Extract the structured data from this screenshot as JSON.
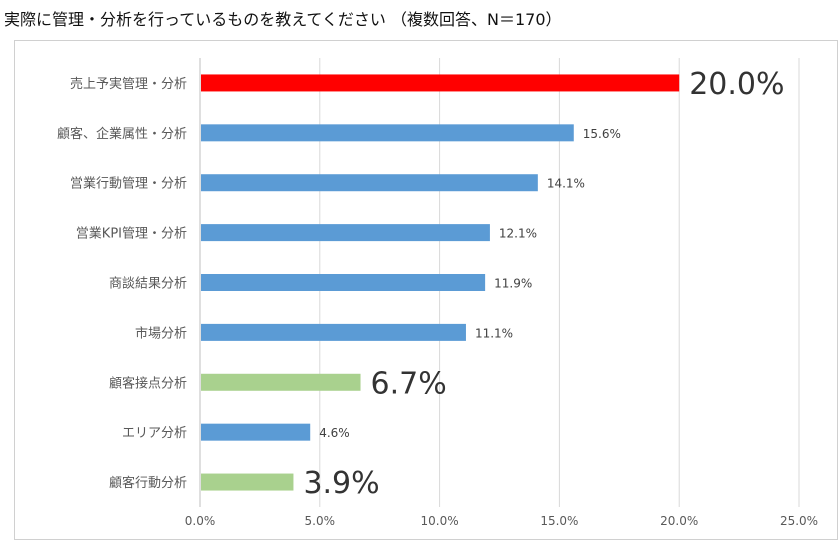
{
  "title": "実際に管理・分析を行っているものを教えてください （複数回答、N＝170）",
  "chart_data": {
    "type": "bar",
    "orientation": "horizontal",
    "categories": [
      "売上予実管理・分析",
      "顧客、企業属性・分析",
      "営業行動管理・分析",
      "営業KPI管理・分析",
      "商談結果分析",
      "市場分析",
      "顧客接点分析",
      "エリア分析",
      "顧客行動分析"
    ],
    "values": [
      20.0,
      15.6,
      14.1,
      12.1,
      11.9,
      11.1,
      6.7,
      4.6,
      3.9
    ],
    "value_labels": [
      "20.0%",
      "15.6%",
      "14.1%",
      "12.1%",
      "11.9%",
      "11.1%",
      "6.7%",
      "4.6%",
      "3.9%"
    ],
    "bar_colors": [
      "#ff0000",
      "#5b9bd5",
      "#5b9bd5",
      "#5b9bd5",
      "#5b9bd5",
      "#5b9bd5",
      "#a9d18e",
      "#5b9bd5",
      "#a9d18e"
    ],
    "emphasized": [
      true,
      false,
      false,
      false,
      false,
      false,
      true,
      false,
      true
    ],
    "xlim": [
      0,
      25
    ],
    "xticks": [
      0,
      5,
      10,
      15,
      20,
      25
    ],
    "xtick_labels": [
      "0.0%",
      "5.0%",
      "10.0%",
      "15.0%",
      "20.0%",
      "25.0%"
    ],
    "grid": "vertical",
    "legend": "none"
  }
}
